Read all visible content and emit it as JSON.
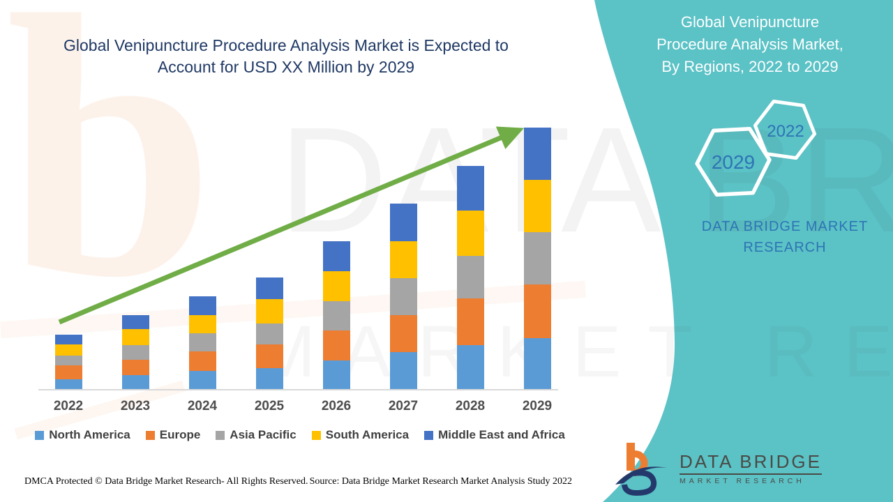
{
  "title": {
    "lines": [
      "Global Venipuncture Procedure Analysis Market is Expected to",
      "Account for USD XX Million by 2029"
    ],
    "color": "#1F3864"
  },
  "teal_panel": {
    "background": "#5BC2C6",
    "heading_lines": [
      "Global Venipuncture",
      "Procedure Analysis Market,",
      "By Regions, 2022 to 2029"
    ],
    "hexagons": [
      {
        "year": "2029"
      },
      {
        "year": "2022"
      }
    ],
    "year_text_color": "#2E74B5",
    "brand_text": "DATA BRIDGE MARKET RESEARCH",
    "brand_color": "#2E74B5"
  },
  "logo": {
    "name_line": "DATA BRIDGE",
    "sub_line": "MARKET RESEARCH",
    "mark_orange": "#ED7D31",
    "mark_navy": "#24396B"
  },
  "footer": {
    "dmca": "DMCA Protected © Data Bridge Market Research- All Rights Reserved.",
    "source": "Source: Data Bridge Market Research Market Analysis Study 2022"
  },
  "chart_data": {
    "type": "bar",
    "stacked": true,
    "title": "Global Venipuncture Procedure Analysis Market is Expected to Account for USD XX Million by 2029",
    "xlabel": "",
    "ylabel": "",
    "y_axis_shown": false,
    "legend_position": "bottom",
    "categories": [
      "2022",
      "2023",
      "2024",
      "2025",
      "2026",
      "2027",
      "2028",
      "2029"
    ],
    "series": [
      {
        "name": "North America",
        "color": "#5B9BD5",
        "values": [
          15,
          21,
          27,
          31,
          42,
          54,
          64,
          74
        ]
      },
      {
        "name": "Europe",
        "color": "#ED7D31",
        "values": [
          20,
          22,
          28,
          34,
          43,
          53,
          67,
          77
        ]
      },
      {
        "name": "Asia Pacific",
        "color": "#A5A5A5",
        "values": [
          14,
          21,
          26,
          30,
          42,
          53,
          61,
          75
        ]
      },
      {
        "name": "South America",
        "color": "#FFC000",
        "values": [
          16,
          23,
          26,
          35,
          43,
          53,
          65,
          75
        ]
      },
      {
        "name": "Middle East and Africa",
        "color": "#4472C4",
        "values": [
          14,
          20,
          27,
          31,
          43,
          54,
          64,
          75
        ]
      }
    ],
    "totals": [
      79,
      107,
      134,
      161,
      213,
      267,
      321,
      376
    ],
    "trend_arrow": {
      "present": true,
      "color": "#70AD47",
      "direction": "up-right"
    }
  }
}
